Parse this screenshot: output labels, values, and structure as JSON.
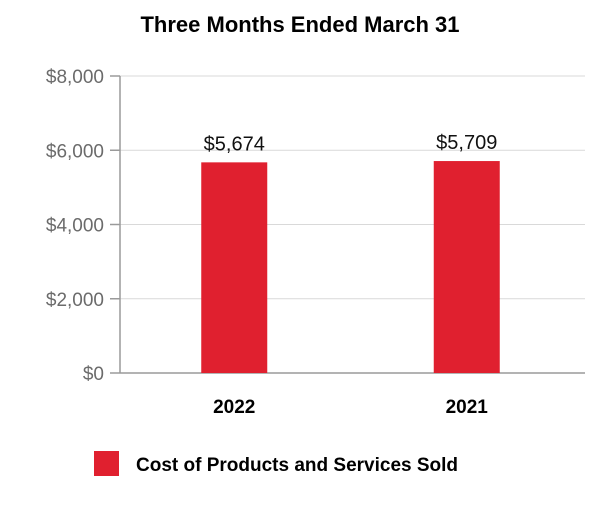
{
  "chart_data": {
    "type": "bar",
    "title": "Three Months Ended March 31",
    "categories": [
      "2022",
      "2021"
    ],
    "series": [
      {
        "name": "Cost of Products and Services Sold",
        "values": [
          5674,
          5709
        ],
        "data_labels": [
          "$5,674",
          "$5,709"
        ],
        "color": "#e0202f"
      }
    ],
    "yticks": [
      0,
      2000,
      4000,
      6000,
      8000
    ],
    "ytick_labels": [
      "$0",
      "$2,000",
      "$4,000",
      "$6,000",
      "$8,000"
    ],
    "ylim": [
      0,
      8000
    ],
    "xlabel": "",
    "ylabel": "",
    "grid": true,
    "legend_position": "bottom"
  }
}
